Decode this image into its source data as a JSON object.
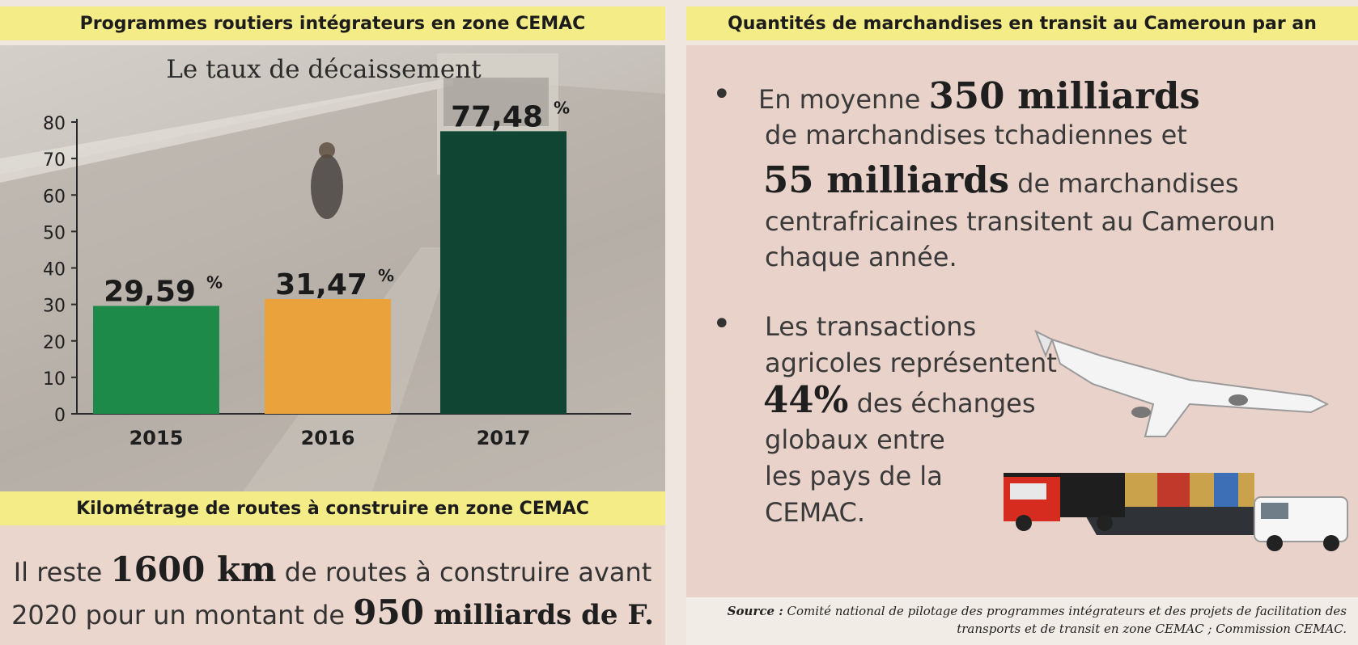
{
  "headers": {
    "left_top": "Programmes routiers intégrateurs en zone CEMAC",
    "right_top": "Quantités de marchandises en transit au Cameroun par an",
    "left_bottom": "Kilométrage de routes à construire en zone CEMAC"
  },
  "chart_data": {
    "type": "bar",
    "title": "Le taux de décaissement",
    "categories": [
      "2015",
      "2016",
      "2017"
    ],
    "values": [
      29.59,
      31.47,
      77.48
    ],
    "value_labels": [
      "29,59",
      "31,47",
      "77,48"
    ],
    "unit": "%",
    "ylim": [
      0,
      80
    ],
    "yticks": [
      "0",
      "10",
      "20",
      "30",
      "40",
      "50",
      "60",
      "70",
      "80"
    ],
    "colors": [
      "#1e8a4a",
      "#e9a23c",
      "#0f4532"
    ],
    "grid": false
  },
  "right": {
    "b1": {
      "pre": "En moyenne ",
      "big1": "350 milliards",
      "l2": "de marchandises tchadiennes et",
      "big2": "55 milliards",
      "l3rest": " de marchandises",
      "l4": "centrafricaines transitent au Cameroun",
      "l5": "chaque année."
    },
    "b2": {
      "l1": "Les transactions",
      "l2": "agricoles représentent",
      "big": "44%",
      "l3rest": " des échanges",
      "l4": "globaux entre",
      "l5": "les pays de la",
      "l6": "CEMAC."
    }
  },
  "km": {
    "pre": "Il reste ",
    "big1": "1600 km",
    "mid": " de routes à construire avant",
    "l2pre": "2020 pour un montant de ",
    "big2": "950",
    "l2end": " milliards de F."
  },
  "source": {
    "label": "Source :",
    "line1": " Comité national de pilotage des programmes intégrateurs et des projets de facilitation des",
    "line2": "transports et de transit en zone CEMAC ; Commission CEMAC."
  },
  "icons": [
    "bullet-icon",
    "airplane-icon",
    "truck-icon",
    "cargo-ship-icon",
    "van-icon"
  ]
}
